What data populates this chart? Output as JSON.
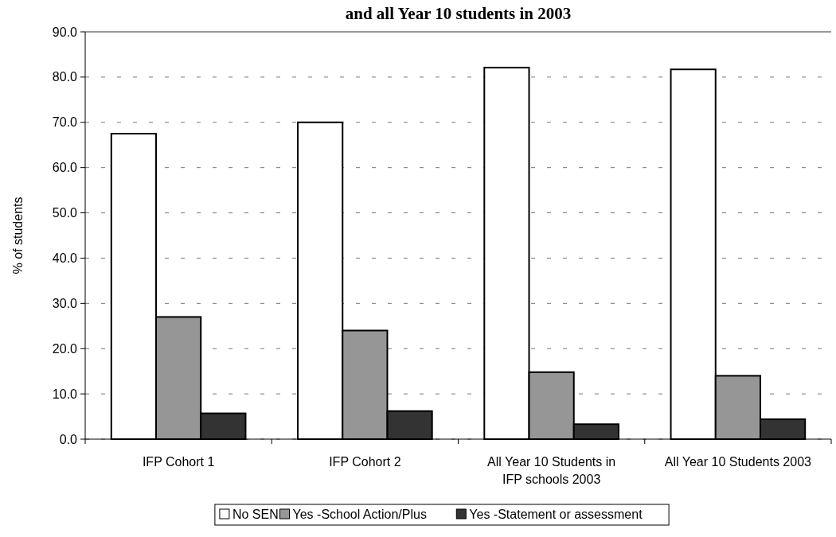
{
  "chart_data": {
    "type": "bar",
    "title": "and all Year 10 students in 2003",
    "ylabel": "% of students",
    "categories": [
      "IFP Cohort 1",
      "IFP Cohort 2",
      "All Year 10 Students in IFP schools 2003",
      "All Year 10 Students 2003"
    ],
    "series": [
      {
        "name": "No SEN",
        "color": "#ffffff",
        "values": [
          67.5,
          70.0,
          82.1,
          81.7
        ]
      },
      {
        "name": "Yes -School Action/Plus",
        "color": "#969696",
        "values": [
          27.0,
          24.0,
          14.8,
          14.0
        ]
      },
      {
        "name": "Yes -Statement or assessment",
        "color": "#333333",
        "values": [
          5.7,
          6.2,
          3.3,
          4.4
        ]
      }
    ],
    "ylim": [
      0,
      90
    ],
    "yticks": [
      {
        "value": 0,
        "label": "0.0"
      },
      {
        "value": 10,
        "label": "10.0"
      },
      {
        "value": 20,
        "label": "20.0"
      },
      {
        "value": 30,
        "label": "30.0"
      },
      {
        "value": 40,
        "label": "40.0"
      },
      {
        "value": 50,
        "label": "50.0"
      },
      {
        "value": 60,
        "label": "60.0"
      },
      {
        "value": 70,
        "label": "70.0"
      },
      {
        "value": 80,
        "label": "80.0"
      },
      {
        "value": 90,
        "label": "90.0"
      }
    ],
    "grid": "y",
    "legend": "bottom"
  }
}
